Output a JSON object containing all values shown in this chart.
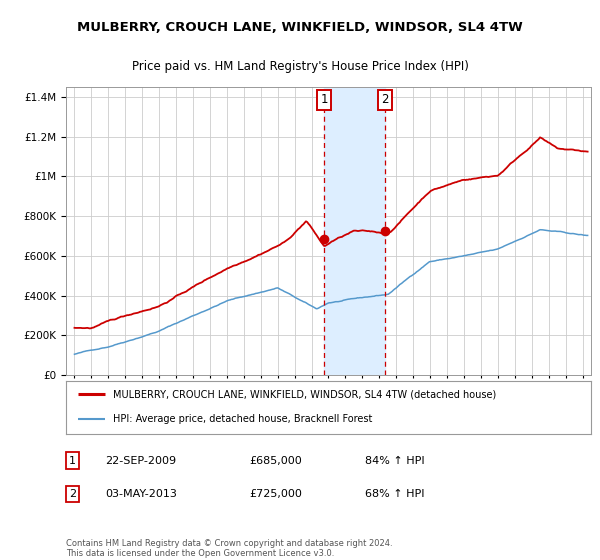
{
  "title1": "MULBERRY, CROUCH LANE, WINKFIELD, WINDSOR, SL4 4TW",
  "title2": "Price paid vs. HM Land Registry's House Price Index (HPI)",
  "legend_line1": "MULBERRY, CROUCH LANE, WINKFIELD, WINDSOR, SL4 4TW (detached house)",
  "legend_line2": "HPI: Average price, detached house, Bracknell Forest",
  "ann1_date": "22-SEP-2009",
  "ann1_price": "£685,000",
  "ann1_hpi": "84% ↑ HPI",
  "ann2_date": "03-MAY-2013",
  "ann2_price": "£725,000",
  "ann2_hpi": "68% ↑ HPI",
  "footnote": "Contains HM Land Registry data © Crown copyright and database right 2024.\nThis data is licensed under the Open Government Licence v3.0.",
  "red_color": "#cc0000",
  "blue_color": "#5599cc",
  "background_color": "#ffffff",
  "grid_color": "#cccccc",
  "shade_color": "#ddeeff",
  "sale1_x": 2009.73,
  "sale2_x": 2013.34,
  "sale1_price": 685000,
  "sale2_price": 725000,
  "ylim_max": 1450000,
  "xlim_min": 1994.5,
  "xlim_max": 2025.5
}
